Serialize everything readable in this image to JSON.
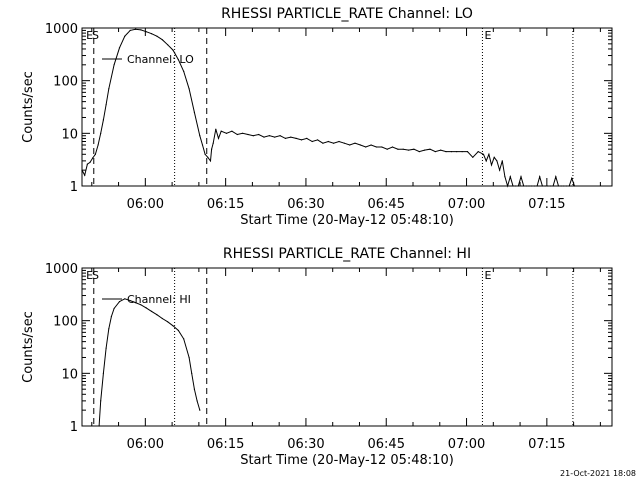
{
  "footer_timestamp": "21-Oct-2021 18:08",
  "chart_data": [
    {
      "type": "line",
      "title": "RHESSI PARTICLE_RATE Channel: LO",
      "xlabel": "Start Time (20-May-12 05:48:10)",
      "ylabel": "Counts/sec",
      "y_scale": "log",
      "ylim": [
        1,
        1000
      ],
      "xlim_minutes": [
        0,
        99
      ],
      "x_ticks": [
        {
          "minute": 11.83,
          "label": "06:00"
        },
        {
          "minute": 26.83,
          "label": "06:15"
        },
        {
          "minute": 41.83,
          "label": "06:30"
        },
        {
          "minute": 56.83,
          "label": "06:45"
        },
        {
          "minute": 71.83,
          "label": "07:00"
        },
        {
          "minute": 86.83,
          "label": "07:15"
        }
      ],
      "y_ticks": [
        {
          "value": 1,
          "label": "1"
        },
        {
          "value": 10,
          "label": "10"
        },
        {
          "value": 100,
          "label": "100"
        },
        {
          "value": 1000,
          "label": "1000"
        }
      ],
      "markers": [
        {
          "label": "E",
          "minute": 0.4
        },
        {
          "label": "S",
          "minute": 1.5
        },
        {
          "label": "E",
          "minute": 74.8
        }
      ],
      "vlines": [
        {
          "minute": 2.2,
          "style": "dashed"
        },
        {
          "minute": 17.3,
          "style": "dotted"
        },
        {
          "minute": 23.3,
          "style": "dashed"
        },
        {
          "minute": 74.8,
          "style": "dotted"
        },
        {
          "minute": 91.7,
          "style": "dotted"
        }
      ],
      "legend": {
        "label": "Channel: LO",
        "placement": "top-left"
      },
      "series": [
        {
          "name": "Channel: LO",
          "x": [
            0,
            0.5,
            1,
            1.5,
            2,
            2.5,
            3,
            3.5,
            4,
            4.5,
            5,
            6,
            7,
            8,
            9,
            10,
            11,
            12,
            13,
            14,
            15,
            16,
            17,
            18,
            19,
            20,
            21,
            22,
            22.5,
            23,
            23.5,
            24,
            24.2,
            24.5,
            25,
            25.5,
            26,
            27,
            28,
            29,
            30,
            31,
            32,
            33,
            34,
            35,
            36,
            37,
            38,
            39,
            40,
            41,
            42,
            43,
            44,
            45,
            46,
            47,
            48,
            49,
            50,
            51,
            52,
            53,
            54,
            55,
            56,
            57,
            58,
            59,
            60,
            61,
            62,
            63,
            64,
            65,
            66,
            67,
            68,
            69,
            70,
            71,
            72,
            73,
            74,
            75,
            75.5,
            76,
            76.5,
            77,
            77.5,
            78,
            78.5,
            79,
            79.5,
            80,
            80.5,
            81,
            81.5,
            82,
            82.5,
            83,
            83.5,
            84,
            84.5,
            85,
            85.5,
            86,
            86.5,
            87,
            87.5,
            88,
            88.5,
            89,
            89.5,
            90,
            90.5,
            91,
            91.5,
            92
          ],
          "y": [
            2,
            1.6,
            2.6,
            2.8,
            3.4,
            4,
            6,
            10,
            18,
            35,
            70,
            200,
            420,
            700,
            900,
            950,
            920,
            850,
            780,
            700,
            600,
            480,
            380,
            250,
            150,
            70,
            25,
            9,
            6,
            4,
            3.5,
            3,
            5,
            6.5,
            12,
            8,
            11,
            10,
            11,
            9.5,
            10,
            9.5,
            9,
            9.5,
            8.5,
            9,
            8.5,
            9,
            8,
            8.5,
            8,
            7.5,
            8,
            7,
            7.5,
            6.5,
            7,
            6.5,
            7,
            6.5,
            6,
            6.5,
            6,
            5.5,
            6,
            5.5,
            5.5,
            5,
            5.5,
            5,
            5,
            4.8,
            5,
            4.5,
            4.8,
            5,
            4.5,
            4.8,
            4.5,
            4.5,
            4.5,
            4.5,
            4.5,
            3.5,
            4.5,
            4,
            3,
            4,
            2.5,
            3.5,
            3,
            2,
            3,
            1.5,
            1,
            1.5,
            1,
            1,
            1,
            1.5,
            1,
            1,
            1,
            1,
            1,
            1,
            1.5,
            1,
            1,
            1,
            1,
            1,
            1.5,
            1,
            1,
            1,
            1,
            1,
            1.4,
            1
          ]
        }
      ]
    },
    {
      "type": "line",
      "title": "RHESSI PARTICLE_RATE Channel: HI",
      "xlabel": "Start Time (20-May-12 05:48:10)",
      "ylabel": "Counts/sec",
      "y_scale": "log",
      "ylim": [
        1,
        1000
      ],
      "xlim_minutes": [
        0,
        99
      ],
      "x_ticks": [
        {
          "minute": 11.83,
          "label": "06:00"
        },
        {
          "minute": 26.83,
          "label": "06:15"
        },
        {
          "minute": 41.83,
          "label": "06:30"
        },
        {
          "minute": 56.83,
          "label": "06:45"
        },
        {
          "minute": 71.83,
          "label": "07:00"
        },
        {
          "minute": 86.83,
          "label": "07:15"
        }
      ],
      "y_ticks": [
        {
          "value": 1,
          "label": "1"
        },
        {
          "value": 10,
          "label": "10"
        },
        {
          "value": 100,
          "label": "100"
        },
        {
          "value": 1000,
          "label": "1000"
        }
      ],
      "markers": [
        {
          "label": "E",
          "minute": 0.4
        },
        {
          "label": "S",
          "minute": 1.5
        },
        {
          "label": "E",
          "minute": 74.8
        }
      ],
      "vlines": [
        {
          "minute": 2.2,
          "style": "dashed"
        },
        {
          "minute": 17.3,
          "style": "dotted"
        },
        {
          "minute": 23.3,
          "style": "dashed"
        },
        {
          "minute": 74.8,
          "style": "dotted"
        },
        {
          "minute": 91.7,
          "style": "dotted"
        }
      ],
      "legend": {
        "label": "Channel: HI",
        "placement": "top-left"
      },
      "series": [
        {
          "name": "Channel: HI",
          "x": [
            3.2,
            3.5,
            4,
            4.5,
            5,
            5.5,
            6,
            7,
            8,
            9,
            10,
            11,
            12,
            13,
            14,
            15,
            16,
            17,
            18,
            19,
            20,
            20.5,
            21,
            21.5,
            22
          ],
          "y": [
            1,
            3,
            10,
            30,
            70,
            120,
            170,
            230,
            260,
            240,
            220,
            200,
            175,
            150,
            130,
            110,
            95,
            80,
            65,
            45,
            20,
            10,
            5,
            3,
            2
          ]
        }
      ]
    }
  ]
}
